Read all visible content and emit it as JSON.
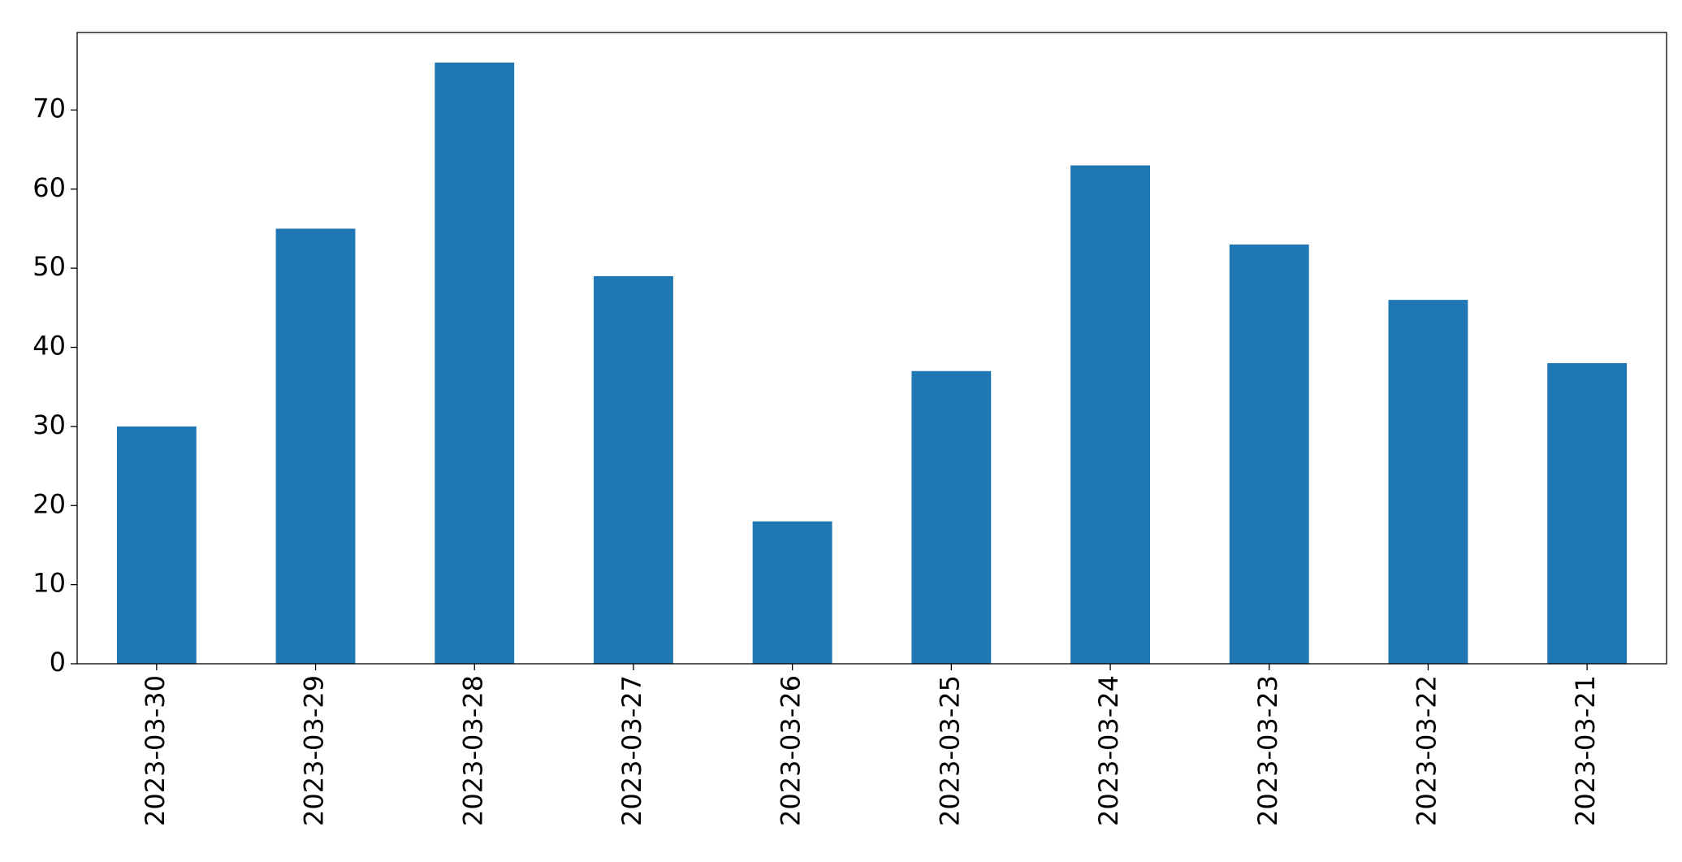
{
  "chart_data": {
    "type": "bar",
    "categories": [
      "2023-03-30",
      "2023-03-29",
      "2023-03-28",
      "2023-03-27",
      "2023-03-26",
      "2023-03-25",
      "2023-03-24",
      "2023-03-23",
      "2023-03-22",
      "2023-03-21"
    ],
    "values": [
      30,
      55,
      76,
      49,
      18,
      37,
      63,
      53,
      46,
      38
    ],
    "color": "#1f77b4",
    "ylim": [
      0,
      79.8
    ],
    "yticks": [
      0,
      10,
      20,
      30,
      40,
      50,
      60,
      70
    ],
    "grid": false
  }
}
